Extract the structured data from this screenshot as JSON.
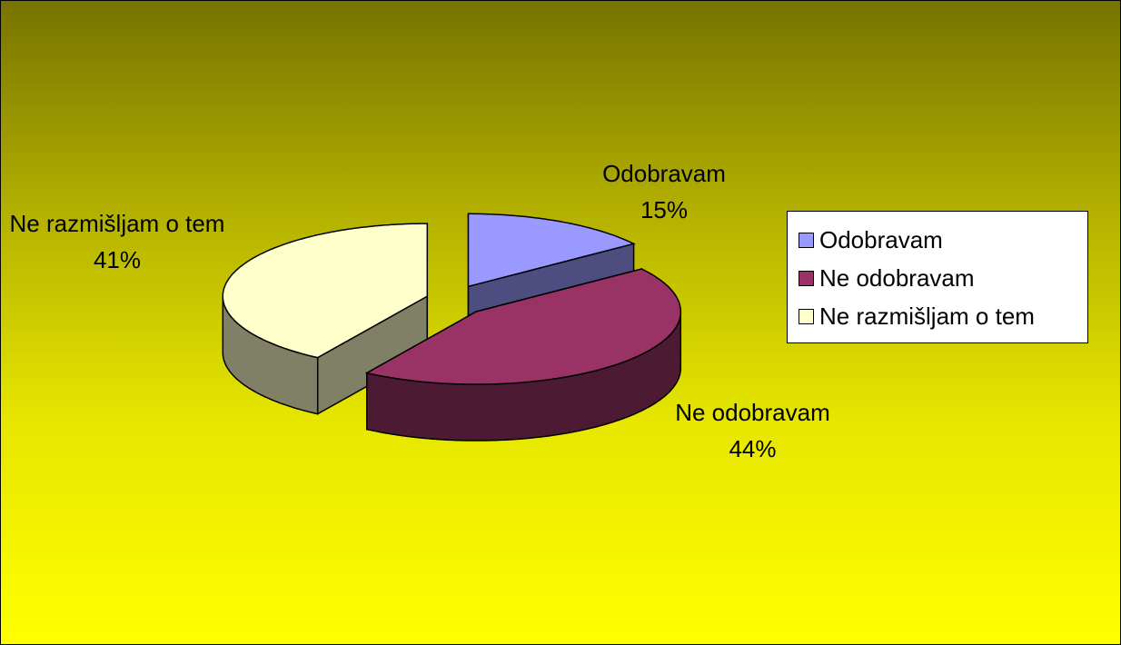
{
  "chart_data": {
    "type": "pie",
    "categories": [
      "Odobravam",
      "Ne odobravam",
      "Ne razmišljam o tem"
    ],
    "values": [
      15,
      44,
      41
    ],
    "value_labels": [
      "15%",
      "44%",
      "41%"
    ],
    "colors": [
      "#9999ff",
      "#993366",
      "#ffffcc"
    ],
    "legend": "right"
  }
}
